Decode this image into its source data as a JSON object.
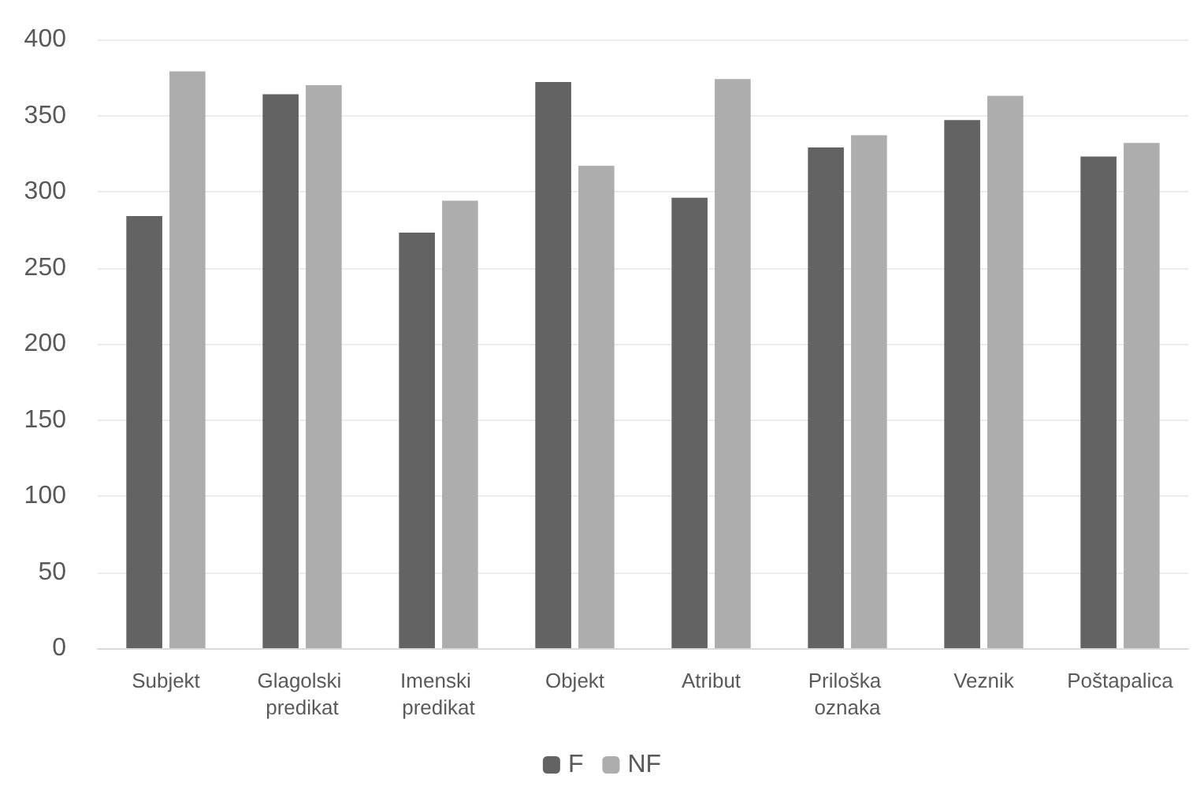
{
  "chart_data": {
    "type": "bar",
    "categories": [
      "Subjekt",
      "Glagolski predikat",
      "Imenski predikat",
      "Objekt",
      "Atribut",
      "Priloška oznaka",
      "Veznik",
      "Poštapalica"
    ],
    "series": [
      {
        "name": "F",
        "color": "#636363",
        "values": [
          284,
          364,
          273,
          372,
          296,
          329,
          347,
          323
        ]
      },
      {
        "name": "NF",
        "color": "#adadad",
        "values": [
          379,
          370,
          294,
          317,
          374,
          337,
          363,
          332
        ]
      }
    ],
    "ylim": [
      0,
      400
    ],
    "yticks": [
      0,
      50,
      100,
      150,
      200,
      250,
      300,
      350,
      400
    ],
    "grid": "y",
    "legend": "bottom"
  }
}
